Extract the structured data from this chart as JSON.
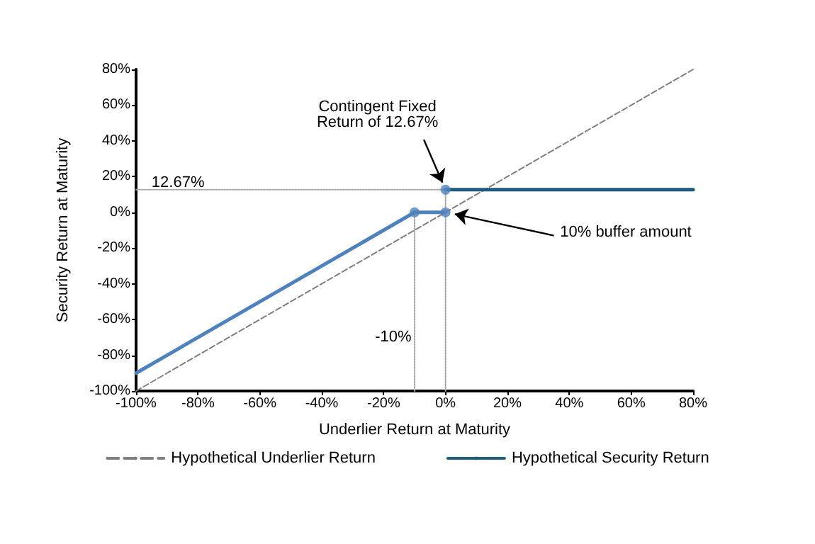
{
  "chart_data": {
    "type": "line",
    "xlabel": "Underlier Return at Maturity",
    "ylabel": "Security Return at Maturity",
    "xlim": [
      -100,
      80
    ],
    "ylim": [
      -100,
      80
    ],
    "xticks": [
      {
        "value": -100,
        "label": "-100%"
      },
      {
        "value": -80,
        "label": "-80%"
      },
      {
        "value": -60,
        "label": "-60%"
      },
      {
        "value": -40,
        "label": "-40%"
      },
      {
        "value": -20,
        "label": "-20%"
      },
      {
        "value": 0,
        "label": "0%"
      },
      {
        "value": 20,
        "label": "20%"
      },
      {
        "value": 40,
        "label": "40%"
      },
      {
        "value": 60,
        "label": "60%"
      },
      {
        "value": 80,
        "label": "80%"
      }
    ],
    "yticks": [
      {
        "value": -100,
        "label": "-100%"
      },
      {
        "value": -80,
        "label": "-80%"
      },
      {
        "value": -60,
        "label": "-60%"
      },
      {
        "value": -40,
        "label": "-40%"
      },
      {
        "value": -20,
        "label": "-20%"
      },
      {
        "value": 0,
        "label": "0%"
      },
      {
        "value": 20,
        "label": "20%"
      },
      {
        "value": 40,
        "label": "40%"
      },
      {
        "value": 60,
        "label": "60%"
      },
      {
        "value": 80,
        "label": "80%"
      }
    ],
    "grid": false,
    "legend": "bottom",
    "series": [
      {
        "name": "Hypothetical Underlier Return",
        "color": "#7f7f7f",
        "line_style": "dashed",
        "marker": "none",
        "x": [
          -100,
          80
        ],
        "values": [
          -100,
          80
        ]
      },
      {
        "name": "Hypothetical Security Return",
        "color": "#1f5a7c",
        "line_style": "solid",
        "marker": "none",
        "x": [
          0,
          80
        ],
        "values": [
          12.67,
          12.67
        ]
      },
      {
        "color": "#4f81bd",
        "line_style": "solid",
        "marker": "none",
        "x": [
          -100,
          -10,
          0
        ],
        "values": [
          -90,
          0,
          0
        ]
      },
      {
        "type": "scatter",
        "color": "#4f81bd",
        "marker": "circle",
        "x": [
          -10,
          0,
          0
        ],
        "values": [
          0,
          0,
          12.67
        ]
      },
      {
        "color": "#a6a6a6",
        "line_style": "dotted",
        "marker": "none",
        "x": [
          -100,
          0
        ],
        "values": [
          12.67,
          12.67
        ]
      },
      {
        "color": "#a6a6a6",
        "line_style": "dotted",
        "marker": "none",
        "x": [
          -10,
          -10
        ],
        "values": [
          -100,
          0
        ]
      },
      {
        "color": "#a6a6a6",
        "line_style": "dotted",
        "marker": "none",
        "x": [
          0,
          0
        ],
        "values": [
          -100,
          12.67
        ]
      }
    ],
    "annotations": [
      {
        "text": "Contingent Fixed\nReturn of 12.67%",
        "x": 0,
        "y": 12.67
      },
      {
        "text": "10% buffer amount",
        "x": 0,
        "y": 0
      },
      {
        "text": "12.67%",
        "x": -100,
        "y": 12.67
      },
      {
        "text": "-10%",
        "x": -10,
        "y": -70
      }
    ]
  }
}
